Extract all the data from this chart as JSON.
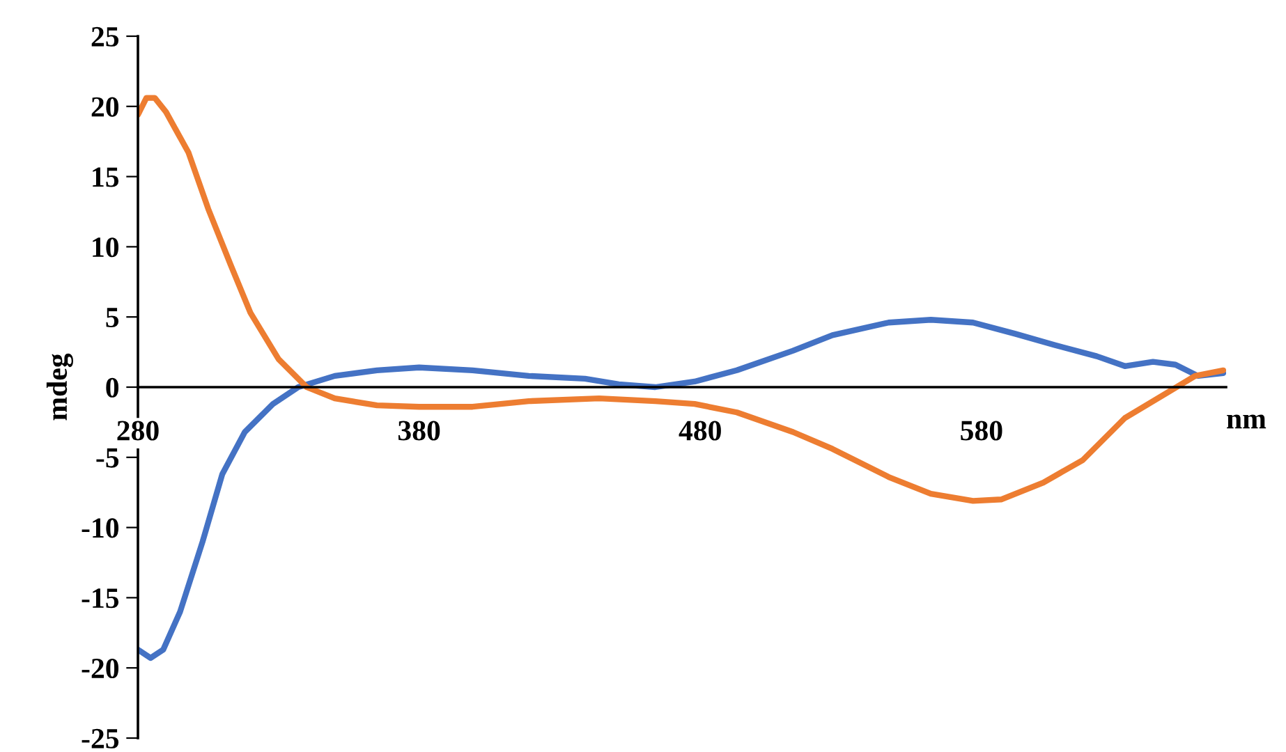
{
  "chart_data": {
    "type": "line",
    "xlabel": "nm",
    "ylabel": "mdeg",
    "xlim": [
      280,
      667
    ],
    "ylim": [
      -25,
      25
    ],
    "xticks": [
      280,
      380,
      480,
      580
    ],
    "yticks": [
      -25,
      -20,
      -15,
      -10,
      -5,
      0,
      5,
      10,
      15,
      20,
      25
    ],
    "grid": false,
    "legend": false,
    "marker": "none",
    "line_style": "solid",
    "series": [
      {
        "color": "#4472c4",
        "x": [
          280,
          284.5,
          289,
          295,
          303,
          310,
          318,
          328,
          337,
          350,
          365,
          380,
          399,
          419,
          439,
          451,
          464,
          478,
          493,
          513,
          527,
          547,
          562,
          577,
          592,
          606,
          621,
          631,
          641,
          649,
          657,
          666
        ],
        "values": [
          -18.7,
          -19.3,
          -18.7,
          -16,
          -11,
          -6.2,
          -3.2,
          -1.2,
          0,
          0.8,
          1.2,
          1.4,
          1.2,
          0.8,
          0.6,
          0.2,
          0,
          0.4,
          1.2,
          2.6,
          3.7,
          4.6,
          4.8,
          4.6,
          3.8,
          3.0,
          2.2,
          1.5,
          1.8,
          1.6,
          0.8,
          1.0
        ]
      },
      {
        "color": "#ed7d31",
        "x": [
          280,
          283,
          286,
          290,
          298,
          305,
          313,
          320,
          330,
          340,
          350,
          365,
          380,
          399,
          419,
          444,
          464,
          478,
          493,
          513,
          527,
          547,
          562,
          577,
          587,
          602,
          616,
          631,
          646,
          656,
          666
        ],
        "values": [
          19.4,
          20.6,
          20.6,
          19.6,
          16.7,
          12.7,
          8.7,
          5.3,
          2,
          0,
          -0.8,
          -1.3,
          -1.4,
          -1.4,
          -1,
          -0.8,
          -1,
          -1.2,
          -1.8,
          -3.2,
          -4.4,
          -6.4,
          -7.6,
          -8.1,
          -8,
          -6.8,
          -5.2,
          -2.2,
          -0.4,
          0.8,
          1.2
        ]
      }
    ]
  }
}
